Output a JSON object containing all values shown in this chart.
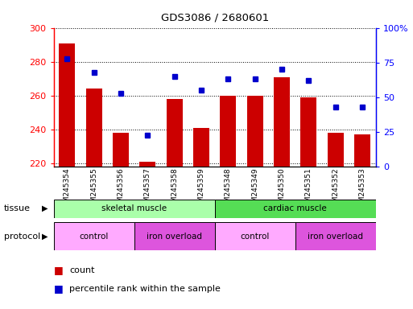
{
  "title": "GDS3086 / 2680601",
  "samples": [
    "GSM245354",
    "GSM245355",
    "GSM245356",
    "GSM245357",
    "GSM245358",
    "GSM245359",
    "GSM245348",
    "GSM245349",
    "GSM245350",
    "GSM245351",
    "GSM245352",
    "GSM245353"
  ],
  "counts": [
    291,
    264,
    238,
    221,
    258,
    241,
    260,
    260,
    271,
    259,
    238,
    237
  ],
  "percentile_ranks": [
    78,
    68,
    53,
    23,
    65,
    55,
    63,
    63,
    70,
    62,
    43,
    43
  ],
  "ylim_left": [
    218,
    300
  ],
  "ylim_right": [
    0,
    100
  ],
  "yticks_left": [
    220,
    240,
    260,
    280,
    300
  ],
  "yticks_right": [
    0,
    25,
    50,
    75,
    100
  ],
  "bar_color": "#cc0000",
  "dot_color": "#0000cc",
  "tissue_groups": [
    {
      "label": "skeletal muscle",
      "start": 0,
      "end": 6,
      "color": "#aaffaa"
    },
    {
      "label": "cardiac muscle",
      "start": 6,
      "end": 12,
      "color": "#55dd55"
    }
  ],
  "protocol_groups": [
    {
      "label": "control",
      "start": 0,
      "end": 3,
      "color": "#ffaaff"
    },
    {
      "label": "iron overload",
      "start": 3,
      "end": 6,
      "color": "#dd55dd"
    },
    {
      "label": "control",
      "start": 6,
      "end": 9,
      "color": "#ffaaff"
    },
    {
      "label": "iron overload",
      "start": 9,
      "end": 12,
      "color": "#dd55dd"
    }
  ],
  "legend_count_label": "count",
  "legend_percentile_label": "percentile rank within the sample",
  "baseline": 218
}
